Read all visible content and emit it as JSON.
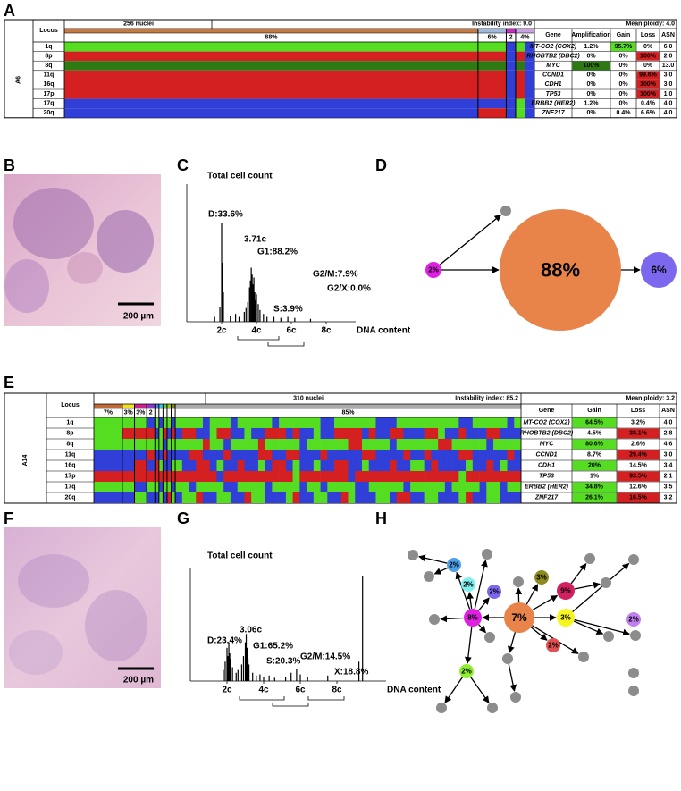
{
  "panels": {
    "A": {
      "label": "A",
      "sample": "A6",
      "locus_header": "Locus",
      "nuclei": "256 nuclei",
      "instability": "Instability index: 9.0",
      "ploidy": "Mean ploidy: 4.0",
      "palette": {
        "G": "#55dd22",
        "R": "#d42020",
        "B": "#2f3fd8",
        "D": "#2e7a12"
      },
      "loci": [
        "1q",
        "8p",
        "8q",
        "11q",
        "16q",
        "17p",
        "17q",
        "20q"
      ],
      "clones": [
        {
          "pct": "88%",
          "width": 88,
          "color": "#c87941",
          "cells": [
            "G",
            "R",
            "D",
            "R",
            "R",
            "R",
            "B",
            "B"
          ]
        },
        {
          "pct": "6%",
          "width": 6,
          "color": "#9fb8dd",
          "cells": [
            "G",
            "R",
            "D",
            "R",
            "R",
            "R",
            "B",
            "R"
          ]
        },
        {
          "pct": "2",
          "width": 2,
          "color": "#d028c8",
          "cells": [
            "B",
            "B",
            "B",
            "B",
            "B",
            "B",
            "B",
            "B"
          ]
        },
        {
          "pct": "4%",
          "width": 4,
          "color": "#c9a2e6",
          "cells": [
            "GB",
            "RB",
            "DB",
            "RB",
            "RB",
            "RB",
            "GB",
            "GB"
          ]
        }
      ],
      "table": {
        "columns": [
          "Gene",
          "Amplification",
          "Gain",
          "Loss",
          "ASN"
        ],
        "rows": [
          [
            {
              "text": "MT-CO2 (COX2)"
            },
            {
              "text": "1.2%"
            },
            {
              "text": "95.7%",
              "bg": "#55dd22"
            },
            {
              "text": "0%"
            },
            {
              "text": "6.0"
            }
          ],
          [
            {
              "text": "RHOBTB2 (DBC2)"
            },
            {
              "text": "0%"
            },
            {
              "text": "0%"
            },
            {
              "text": "100%",
              "bg": "#d42020"
            },
            {
              "text": "2.0"
            }
          ],
          [
            {
              "text": "MYC"
            },
            {
              "text": "100%",
              "bg": "#2e7a12"
            },
            {
              "text": "0%"
            },
            {
              "text": "0%"
            },
            {
              "text": "13.0"
            }
          ],
          [
            {
              "text": "CCND1"
            },
            {
              "text": "0%"
            },
            {
              "text": "0%"
            },
            {
              "text": "99.6%",
              "bg": "#d42020"
            },
            {
              "text": "3.0"
            }
          ],
          [
            {
              "text": "CDH1"
            },
            {
              "text": "0%"
            },
            {
              "text": "0%"
            },
            {
              "text": "100%",
              "bg": "#d42020"
            },
            {
              "text": "3.0"
            }
          ],
          [
            {
              "text": "TP53"
            },
            {
              "text": "0%"
            },
            {
              "text": "0%"
            },
            {
              "text": "100%",
              "bg": "#d42020"
            },
            {
              "text": "1.0"
            }
          ],
          [
            {
              "text": "ERBB2 (HER2)"
            },
            {
              "text": "1.2%"
            },
            {
              "text": "0%"
            },
            {
              "text": "0.4%"
            },
            {
              "text": "4.0"
            }
          ],
          [
            {
              "text": "ZNF217"
            },
            {
              "text": "0%"
            },
            {
              "text": "0.4%"
            },
            {
              "text": "6.6%"
            },
            {
              "text": "4.0"
            }
          ]
        ]
      }
    },
    "B": {
      "label": "B",
      "scale": "200 µm"
    },
    "C": {
      "label": "C",
      "y_label": "Total cell count",
      "x_label": "DNA content",
      "xticks": [
        {
          "value": 2,
          "label": "2c"
        },
        {
          "value": 4,
          "label": "4c"
        },
        {
          "value": 6,
          "label": "6c"
        },
        {
          "value": 8,
          "label": "8c"
        }
      ],
      "annotations": [
        "D:33.6%",
        "3.71c",
        "G1:88.2%",
        "S:3.9%",
        "G2/M:7.9%",
        "G2/X:0.0%"
      ],
      "bars": [
        [
          1.6,
          5
        ],
        [
          1.9,
          15
        ],
        [
          2.0,
          100
        ],
        [
          2.05,
          60
        ],
        [
          2.1,
          30
        ],
        [
          2.5,
          6
        ],
        [
          2.8,
          8
        ],
        [
          3.0,
          5
        ],
        [
          3.3,
          10
        ],
        [
          3.4,
          14
        ],
        [
          3.5,
          20
        ],
        [
          3.6,
          35
        ],
        [
          3.65,
          42
        ],
        [
          3.7,
          55
        ],
        [
          3.75,
          48
        ],
        [
          3.8,
          38
        ],
        [
          3.85,
          45
        ],
        [
          3.9,
          30
        ],
        [
          3.95,
          22
        ],
        [
          4.0,
          28
        ],
        [
          4.1,
          18
        ],
        [
          4.2,
          12
        ],
        [
          4.4,
          8
        ],
        [
          4.6,
          5
        ],
        [
          5.0,
          5
        ],
        [
          5.4,
          4
        ],
        [
          5.8,
          5
        ],
        [
          6.2,
          4
        ],
        [
          7.1,
          3
        ]
      ]
    },
    "D": {
      "label": "D",
      "nodes": [
        {
          "label": "2%",
          "color": "#e020e0"
        },
        {
          "label": null,
          "color": "#8c8c8c"
        },
        {
          "label": "88%",
          "color": "#e8834a"
        },
        {
          "label": "6%",
          "color": "#7b68ee"
        }
      ],
      "edges": [
        [
          0,
          1
        ],
        [
          0,
          2
        ],
        [
          2,
          3
        ]
      ]
    },
    "E": {
      "label": "E",
      "sample": "A14",
      "locus_header": "Locus",
      "nuclei": "310 nuclei",
      "instability": "Instability index: 85.2",
      "ploidy": "Mean ploidy: 3.2",
      "palette": {
        "G": "#55dd22",
        "R": "#d42020",
        "B": "#2f3fd8",
        "D": "#2e7a12"
      },
      "loci": [
        "1q",
        "8p",
        "8q",
        "11q",
        "16q",
        "17p",
        "17q",
        "20q"
      ],
      "clones": [
        {
          "pct": "7%",
          "width": 7,
          "color": "#c06a34",
          "cells": [
            "G",
            "G",
            "G",
            "B",
            "B",
            "R",
            "G",
            "B"
          ]
        },
        {
          "pct": "3%",
          "width": 3,
          "color": "#f0e020",
          "cells": [
            "G",
            "R",
            "G",
            "B",
            "B",
            "R",
            "G",
            "B"
          ]
        },
        {
          "pct": "3%",
          "width": 3,
          "color": "#d0208f",
          "cells": [
            "G",
            "R",
            "G",
            "B",
            "R",
            "R",
            "B",
            "G"
          ]
        },
        {
          "pct": "2",
          "width": 2,
          "color": "#8a38d0",
          "cells": [
            "B",
            "R",
            "G",
            "R",
            "B",
            "R",
            "G",
            "B"
          ]
        },
        {
          "pct": null,
          "width": 1,
          "color": "#3a8ee8",
          "cells": [
            "G",
            "B",
            "G",
            "B",
            "R",
            "R",
            "G",
            "B"
          ]
        },
        {
          "pct": null,
          "width": 1,
          "color": "#40c0e0",
          "cells": [
            "B",
            "G",
            "G",
            "B",
            "G",
            "R",
            "B",
            "G"
          ]
        },
        {
          "pct": null,
          "width": 1,
          "color": "#5cd040",
          "cells": [
            "G",
            "R",
            "B",
            "R",
            "B",
            "R",
            "G",
            "B"
          ]
        },
        {
          "pct": null,
          "width": 1,
          "color": "#a0c020",
          "cells": [
            "G",
            "B",
            "G",
            "B",
            "B",
            "R",
            "G",
            "R"
          ]
        },
        {
          "pct": null,
          "width": 1,
          "color": "#808020",
          "cells": [
            "B",
            "R",
            "G",
            "B",
            "G",
            "R",
            "B",
            "G"
          ]
        },
        {
          "pct": "85%",
          "width": 85,
          "color": "#aaaaaa",
          "cells": [
            "GGGGBGGGBGGGGGBGGGGGGBBGGGGGGBBBGGGGGGGGGBBGGGGGBG",
            "BRRBBGRRBBGBBRRRBRBBGBBRRRRBRBBRRBBBRRGBBRBBBRRBBB",
            "GGGGRGGBGGGGRGGGGGBGGGGGGRRGGGGBGGGGGGRRGGGGGBGGGG",
            "BBRRBBBRBBBBRRBBRRBBBRBBBBBRRBBBBRBBRBBBBRRBBBBBRB",
            "GBBRRBGBBRBBGBRRBGBBGBBRRBBGBBBRBBGGBRBBBBGBBRBGBB",
            "RRRRRRBRRRRRRRRRRGRRRRRRRBRRRRRRRRRRRRRRRGRRRRRRRR",
            "GGBGGGGBBGGGGBGGGGBGGBGGGGBBGGGGGBGGGGGBGGGGBGGBGG",
            "BGGRBBGGBBRGGBBBGRBBGGBBRGBBBGGBRRBBGGBBBGRBBGGBBB"
          ]
        }
      ],
      "table": {
        "columns": [
          "Gene",
          "Gain",
          "Loss",
          "ASN"
        ],
        "rows": [
          [
            {
              "text": "MT-CO2 (COX2)"
            },
            {
              "text": "64.5%",
              "bg": "#55dd22"
            },
            {
              "text": "3.2%"
            },
            {
              "text": "4.0"
            }
          ],
          [
            {
              "text": "RHOBTB2 (DBC2)"
            },
            {
              "text": "4.5%"
            },
            {
              "text": "38.1%",
              "bg": "#d42020"
            },
            {
              "text": "2.8"
            }
          ],
          [
            {
              "text": "MYC"
            },
            {
              "text": "80.6%",
              "bg": "#55dd22"
            },
            {
              "text": "2.6%"
            },
            {
              "text": "4.6"
            }
          ],
          [
            {
              "text": "CCND1"
            },
            {
              "text": "8.7%"
            },
            {
              "text": "29.4%",
              "bg": "#d42020"
            },
            {
              "text": "3.0"
            }
          ],
          [
            {
              "text": "CDH1"
            },
            {
              "text": "20%",
              "bg": "#55dd22"
            },
            {
              "text": "14.5%"
            },
            {
              "text": "3.4"
            }
          ],
          [
            {
              "text": "TP53"
            },
            {
              "text": "1%"
            },
            {
              "text": "93.5%",
              "bg": "#d42020"
            },
            {
              "text": "2.1"
            }
          ],
          [
            {
              "text": "ERBB2 (HER2)"
            },
            {
              "text": "34.8%",
              "bg": "#55dd22"
            },
            {
              "text": "12.6%"
            },
            {
              "text": "3.5"
            }
          ],
          [
            {
              "text": "ZNF217"
            },
            {
              "text": "26.1%",
              "bg": "#55dd22"
            },
            {
              "text": "16.5%",
              "bg": "#d42020"
            },
            {
              "text": "3.2"
            }
          ]
        ]
      }
    },
    "F": {
      "label": "F",
      "scale": "200 µm"
    },
    "G": {
      "label": "G",
      "y_label": "Total cell count",
      "x_label": "DNA content",
      "xticks": [
        {
          "value": 2,
          "label": "2c"
        },
        {
          "value": 4,
          "label": "4c"
        },
        {
          "value": 6,
          "label": "6c"
        },
        {
          "value": 8,
          "label": "8c"
        }
      ],
      "annotations": [
        "D:23.4%",
        "3.06c",
        "G1:65.2%",
        "S:20.3%",
        "G2/M:14.5%",
        "X:18.8%"
      ],
      "bars": [
        [
          1.8,
          20
        ],
        [
          1.9,
          35
        ],
        [
          2.0,
          60
        ],
        [
          2.05,
          45
        ],
        [
          2.1,
          70
        ],
        [
          2.15,
          50
        ],
        [
          2.2,
          40
        ],
        [
          2.3,
          25
        ],
        [
          2.5,
          15
        ],
        [
          2.6,
          20
        ],
        [
          2.8,
          30
        ],
        [
          2.9,
          45
        ],
        [
          3.0,
          70
        ],
        [
          3.05,
          85
        ],
        [
          3.1,
          60
        ],
        [
          3.15,
          40
        ],
        [
          3.2,
          30
        ],
        [
          3.4,
          15
        ],
        [
          3.6,
          10
        ],
        [
          3.8,
          12
        ],
        [
          4.0,
          8
        ],
        [
          4.3,
          10
        ],
        [
          4.6,
          6
        ],
        [
          5.2,
          8
        ],
        [
          5.5,
          15
        ],
        [
          5.8,
          22
        ],
        [
          6.0,
          12
        ],
        [
          6.4,
          8
        ],
        [
          7.5,
          10
        ],
        [
          9.2,
          35
        ],
        [
          9.4,
          190
        ]
      ]
    },
    "H": {
      "label": "H",
      "nodes": [
        {
          "label": "7%",
          "color": "#e8834a"
        },
        {
          "label": "8%",
          "color": "#e020e0"
        },
        {
          "label": "3%",
          "color": "#f5f520"
        },
        {
          "label": "9%",
          "color": "#d0205f"
        },
        {
          "label": "3%",
          "color": "#8b8b1e"
        },
        {
          "label": "2%",
          "color": "#4fa0e8"
        },
        {
          "label": "2%",
          "color": "#7ff0f0"
        },
        {
          "label": "2%",
          "color": "#7b68ee"
        },
        {
          "label": "2%",
          "color": "#e05050"
        },
        {
          "label": "2%",
          "color": "#90ee30"
        },
        {
          "label": "2%",
          "color": "#c080f0"
        },
        {
          "label": null,
          "color": "#8c8c8c"
        },
        {
          "label": null,
          "color": "#8c8c8c"
        },
        {
          "label": null,
          "color": "#8c8c8c"
        },
        {
          "label": null,
          "color": "#8c8c8c"
        },
        {
          "label": null,
          "color": "#8c8c8c"
        },
        {
          "label": null,
          "color": "#8c8c8c"
        },
        {
          "label": null,
          "color": "#8c8c8c"
        },
        {
          "label": null,
          "color": "#8c8c8c"
        },
        {
          "label": null,
          "color": "#8c8c8c"
        },
        {
          "label": null,
          "color": "#8c8c8c"
        },
        {
          "label": null,
          "color": "#8c8c8c"
        },
        {
          "label": null,
          "color": "#8c8c8c"
        },
        {
          "label": null,
          "color": "#8c8c8c"
        },
        {
          "label": null,
          "color": "#8c8c8c"
        },
        {
          "label": null,
          "color": "#8c8c8c"
        },
        {
          "label": null,
          "color": "#8c8c8c"
        },
        {
          "label": null,
          "color": "#8c8c8c"
        },
        {
          "label": null,
          "color": "#8c8c8c"
        }
      ],
      "edges": [
        [
          0,
          1
        ],
        [
          0,
          2
        ],
        [
          0,
          3
        ],
        [
          0,
          4
        ],
        [
          0,
          15
        ],
        [
          0,
          8
        ],
        [
          0,
          22
        ],
        [
          0,
          21
        ],
        [
          1,
          5
        ],
        [
          1,
          6
        ],
        [
          1,
          7
        ],
        [
          1,
          13
        ],
        [
          1,
          14
        ],
        [
          1,
          9
        ],
        [
          1,
          26
        ],
        [
          5,
          11
        ],
        [
          5,
          12
        ],
        [
          3,
          16
        ],
        [
          3,
          17
        ],
        [
          2,
          18
        ],
        [
          2,
          19
        ],
        [
          2,
          20
        ],
        [
          22,
          23
        ],
        [
          9,
          24
        ],
        [
          9,
          25
        ]
      ]
    }
  }
}
